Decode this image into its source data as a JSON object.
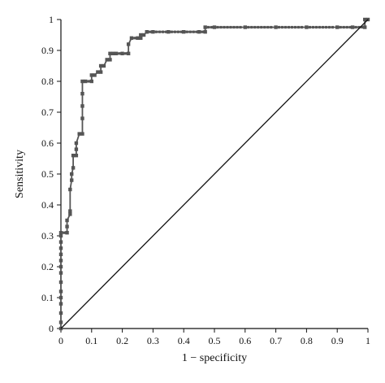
{
  "chart_data": {
    "type": "line",
    "title": "",
    "xlabel": "1 − specificity",
    "ylabel": "Sensitivity",
    "xlim": [
      0,
      1
    ],
    "ylim": [
      0,
      1
    ],
    "x_ticks": [
      "0",
      "0.1",
      "0.2",
      "0.3",
      "0.4",
      "0.5",
      "0.6",
      "0.7",
      "0.8",
      "0.9",
      "1"
    ],
    "y_ticks": [
      "0",
      "0.1",
      "0.2",
      "0.3",
      "0.4",
      "0.5",
      "0.6",
      "0.7",
      "0.8",
      "0.9",
      "1"
    ],
    "grid": false,
    "legend": "none",
    "series": [
      {
        "role": "roc-curve",
        "color": "#555555",
        "marker": "square",
        "x": [
          0,
          0,
          0,
          0,
          0,
          0,
          0,
          0,
          0,
          0,
          0,
          0,
          0,
          0,
          0,
          0.02,
          0.02,
          0.02,
          0.03,
          0.03,
          0.03,
          0.035,
          0.035,
          0.04,
          0.04,
          0.05,
          0.05,
          0.05,
          0.06,
          0.07,
          0.07,
          0.07,
          0.07,
          0.07,
          0.08,
          0.1,
          0.1,
          0.11,
          0.12,
          0.13,
          0.13,
          0.14,
          0.15,
          0.16,
          0.16,
          0.17,
          0.18,
          0.2,
          0.22,
          0.22,
          0.23,
          0.25,
          0.26,
          0.26,
          0.27,
          0.28,
          0.28,
          0.3,
          0.35,
          0.4,
          0.45,
          0.47,
          0.47,
          0.5,
          0.6,
          0.7,
          0.8,
          0.9,
          0.95,
          0.99,
          0.99,
          1
        ],
        "y": [
          0,
          0.02,
          0.05,
          0.08,
          0.1,
          0.12,
          0.15,
          0.18,
          0.2,
          0.22,
          0.24,
          0.26,
          0.28,
          0.3,
          0.31,
          0.31,
          0.33,
          0.35,
          0.37,
          0.38,
          0.45,
          0.48,
          0.5,
          0.52,
          0.56,
          0.56,
          0.58,
          0.6,
          0.63,
          0.63,
          0.68,
          0.72,
          0.76,
          0.8,
          0.8,
          0.8,
          0.82,
          0.82,
          0.83,
          0.83,
          0.85,
          0.85,
          0.87,
          0.87,
          0.89,
          0.89,
          0.89,
          0.89,
          0.89,
          0.92,
          0.94,
          0.94,
          0.94,
          0.95,
          0.95,
          0.96,
          0.96,
          0.96,
          0.96,
          0.96,
          0.96,
          0.96,
          0.975,
          0.975,
          0.975,
          0.975,
          0.975,
          0.975,
          0.975,
          0.975,
          1,
          1
        ]
      },
      {
        "role": "reference-diagonal",
        "color": "#111111",
        "marker": "none",
        "x": [
          0,
          1
        ],
        "y": [
          0,
          1
        ]
      }
    ]
  }
}
